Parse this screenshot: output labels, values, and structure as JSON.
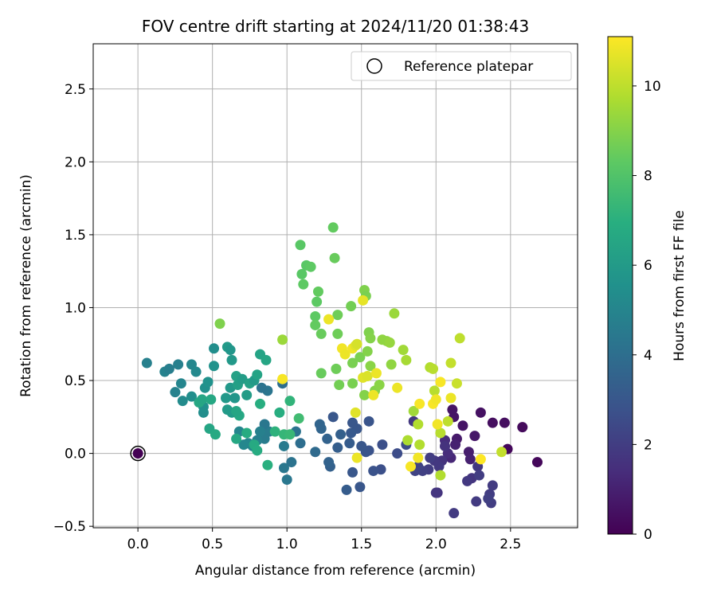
{
  "chart_data": {
    "type": "scatter",
    "title": "FOV centre drift starting at 2024/11/20 01:38:43",
    "xlabel": "Angular distance from reference (arcmin)",
    "ylabel": "Rotation from reference (arcmin)",
    "xlim": [
      -0.3,
      2.95
    ],
    "ylim": [
      -0.51,
      2.81
    ],
    "xticks": [
      0.0,
      0.5,
      1.0,
      1.5,
      2.0,
      2.5
    ],
    "xtick_labels": [
      "0.0",
      "0.5",
      "1.0",
      "1.5",
      "2.0",
      "2.5"
    ],
    "yticks": [
      -0.5,
      0.0,
      0.5,
      1.0,
      1.5,
      2.0,
      2.5
    ],
    "ytick_labels": [
      "−0.5",
      "0.0",
      "0.5",
      "1.0",
      "1.5",
      "2.0",
      "2.5"
    ],
    "grid": true,
    "legend": {
      "position": "top-right",
      "entries": [
        {
          "label": "Reference platepar",
          "marker": "hollow-circle"
        }
      ]
    },
    "colorbar": {
      "label": "Hours from first FF file",
      "colormap": "viridis",
      "range": [
        0,
        11.1
      ],
      "ticks": [
        0,
        2,
        4,
        6,
        8,
        10
      ],
      "tick_labels": [
        "0",
        "2",
        "4",
        "6",
        "8",
        "10"
      ]
    },
    "reference_point": {
      "x": 0.0,
      "y": 0.0,
      "hours": 0
    },
    "points": [
      {
        "x": 2.68,
        "y": -0.06,
        "h": 0.2
      },
      {
        "x": 2.58,
        "y": 0.18,
        "h": 0.3
      },
      {
        "x": 2.48,
        "y": 0.03,
        "h": 0.2
      },
      {
        "x": 2.46,
        "y": 0.21,
        "h": 0.4
      },
      {
        "x": 2.38,
        "y": 0.21,
        "h": 0.4
      },
      {
        "x": 2.3,
        "y": 0.28,
        "h": 0.5
      },
      {
        "x": 2.26,
        "y": 0.12,
        "h": 0.7
      },
      {
        "x": 2.22,
        "y": 0.01,
        "h": 0.9
      },
      {
        "x": 2.23,
        "y": -0.04,
        "h": 1.0
      },
      {
        "x": 2.18,
        "y": 0.19,
        "h": 0.6
      },
      {
        "x": 2.14,
        "y": 0.1,
        "h": 0.8
      },
      {
        "x": 2.12,
        "y": 0.25,
        "h": 0.6
      },
      {
        "x": 2.11,
        "y": 0.3,
        "h": 0.6
      },
      {
        "x": 2.13,
        "y": 0.06,
        "h": 1.0
      },
      {
        "x": 2.1,
        "y": -0.03,
        "h": 1.2
      },
      {
        "x": 2.08,
        "y": 0.0,
        "h": 1.4
      },
      {
        "x": 2.06,
        "y": 0.09,
        "h": 1.4
      },
      {
        "x": 2.06,
        "y": 0.05,
        "h": 1.6
      },
      {
        "x": 2.04,
        "y": -0.05,
        "h": 1.6
      },
      {
        "x": 2.02,
        "y": -0.09,
        "h": 1.8
      },
      {
        "x": 2.01,
        "y": -0.27,
        "h": 1.6
      },
      {
        "x": 2.0,
        "y": -0.27,
        "h": 1.7
      },
      {
        "x": 1.99,
        "y": -0.05,
        "h": 1.8
      },
      {
        "x": 1.96,
        "y": -0.03,
        "h": 2.0
      },
      {
        "x": 1.95,
        "y": -0.11,
        "h": 2.0
      },
      {
        "x": 1.91,
        "y": -0.12,
        "h": 2.1
      },
      {
        "x": 1.88,
        "y": -0.09,
        "h": 2.2
      },
      {
        "x": 1.86,
        "y": -0.12,
        "h": 2.2
      },
      {
        "x": 1.85,
        "y": 0.22,
        "h": 1.8
      },
      {
        "x": 2.24,
        "y": -0.17,
        "h": 1.7
      },
      {
        "x": 2.21,
        "y": -0.19,
        "h": 1.8
      },
      {
        "x": 2.28,
        "y": -0.09,
        "h": 1.8
      },
      {
        "x": 2.29,
        "y": -0.15,
        "h": 2.0
      },
      {
        "x": 2.36,
        "y": -0.28,
        "h": 2.0
      },
      {
        "x": 2.38,
        "y": -0.22,
        "h": 1.9
      },
      {
        "x": 2.37,
        "y": -0.34,
        "h": 2.0
      },
      {
        "x": 2.27,
        "y": -0.33,
        "h": 1.9
      },
      {
        "x": 2.12,
        "y": -0.41,
        "h": 1.9
      },
      {
        "x": 2.35,
        "y": -0.31,
        "h": 2.1
      },
      {
        "x": 1.8,
        "y": 0.06,
        "h": 2.6
      },
      {
        "x": 1.74,
        "y": 0.0,
        "h": 2.6
      },
      {
        "x": 1.64,
        "y": 0.06,
        "h": 2.7
      },
      {
        "x": 1.63,
        "y": -0.11,
        "h": 2.7
      },
      {
        "x": 1.58,
        "y": -0.12,
        "h": 2.8
      },
      {
        "x": 1.55,
        "y": 0.02,
        "h": 2.8
      },
      {
        "x": 1.53,
        "y": 0.01,
        "h": 2.9
      },
      {
        "x": 1.5,
        "y": 0.05,
        "h": 3.0
      },
      {
        "x": 1.55,
        "y": 0.22,
        "h": 2.9
      },
      {
        "x": 1.47,
        "y": 0.17,
        "h": 3.0
      },
      {
        "x": 1.44,
        "y": 0.21,
        "h": 3.0
      },
      {
        "x": 1.43,
        "y": 0.14,
        "h": 3.1
      },
      {
        "x": 1.42,
        "y": 0.07,
        "h": 3.2
      },
      {
        "x": 1.44,
        "y": -0.13,
        "h": 3.0
      },
      {
        "x": 1.49,
        "y": -0.23,
        "h": 3.0
      },
      {
        "x": 1.4,
        "y": -0.25,
        "h": 3.2
      },
      {
        "x": 1.36,
        "y": 0.13,
        "h": 3.4
      },
      {
        "x": 1.34,
        "y": 0.04,
        "h": 3.3
      },
      {
        "x": 1.31,
        "y": 0.25,
        "h": 3.0
      },
      {
        "x": 1.29,
        "y": -0.09,
        "h": 3.4
      },
      {
        "x": 1.28,
        "y": -0.06,
        "h": 3.5
      },
      {
        "x": 1.27,
        "y": 0.1,
        "h": 3.5
      },
      {
        "x": 1.23,
        "y": 0.17,
        "h": 3.6
      },
      {
        "x": 1.22,
        "y": 0.2,
        "h": 3.6
      },
      {
        "x": 1.19,
        "y": 0.01,
        "h": 3.8
      },
      {
        "x": 1.09,
        "y": 0.07,
        "h": 4.0
      },
      {
        "x": 1.06,
        "y": 0.15,
        "h": 4.2
      },
      {
        "x": 1.03,
        "y": -0.06,
        "h": 4.2
      },
      {
        "x": 0.98,
        "y": -0.1,
        "h": 4.4
      },
      {
        "x": 1.0,
        "y": -0.18,
        "h": 4.4
      },
      {
        "x": 0.98,
        "y": 0.05,
        "h": 4.5
      },
      {
        "x": 0.97,
        "y": 0.48,
        "h": 4.0
      },
      {
        "x": 0.87,
        "y": 0.43,
        "h": 4.3
      },
      {
        "x": 0.83,
        "y": 0.45,
        "h": 4.2
      },
      {
        "x": 0.88,
        "y": 0.15,
        "h": 4.6
      },
      {
        "x": 0.85,
        "y": 0.2,
        "h": 4.4
      },
      {
        "x": 0.85,
        "y": 0.1,
        "h": 4.6
      },
      {
        "x": 0.82,
        "y": 0.15,
        "h": 4.8
      },
      {
        "x": 0.8,
        "y": 0.09,
        "h": 4.8
      },
      {
        "x": 0.77,
        "y": 0.05,
        "h": 5.0
      },
      {
        "x": 0.74,
        "y": 0.07,
        "h": 5.0
      },
      {
        "x": 0.71,
        "y": 0.06,
        "h": 5.1
      },
      {
        "x": 0.68,
        "y": 0.15,
        "h": 5.0
      },
      {
        "x": 0.06,
        "y": 0.62,
        "h": 4.8
      },
      {
        "x": 0.18,
        "y": 0.56,
        "h": 4.9
      },
      {
        "x": 0.21,
        "y": 0.58,
        "h": 4.7
      },
      {
        "x": 0.27,
        "y": 0.61,
        "h": 4.8
      },
      {
        "x": 0.25,
        "y": 0.42,
        "h": 4.9
      },
      {
        "x": 0.29,
        "y": 0.48,
        "h": 5.0
      },
      {
        "x": 0.36,
        "y": 0.61,
        "h": 5.1
      },
      {
        "x": 0.39,
        "y": 0.56,
        "h": 5.2
      },
      {
        "x": 0.3,
        "y": 0.36,
        "h": 5.3
      },
      {
        "x": 0.36,
        "y": 0.39,
        "h": 5.4
      },
      {
        "x": 0.45,
        "y": 0.45,
        "h": 5.5
      },
      {
        "x": 0.44,
        "y": 0.28,
        "h": 5.4
      },
      {
        "x": 0.44,
        "y": 0.32,
        "h": 5.5
      },
      {
        "x": 0.47,
        "y": 0.49,
        "h": 5.6
      },
      {
        "x": 0.51,
        "y": 0.6,
        "h": 5.6
      },
      {
        "x": 0.51,
        "y": 0.72,
        "h": 5.4
      },
      {
        "x": 0.6,
        "y": 0.73,
        "h": 6.0
      },
      {
        "x": 0.62,
        "y": 0.71,
        "h": 5.8
      },
      {
        "x": 0.63,
        "y": 0.64,
        "h": 5.9
      },
      {
        "x": 0.62,
        "y": 0.45,
        "h": 5.9
      },
      {
        "x": 0.59,
        "y": 0.38,
        "h": 5.9
      },
      {
        "x": 0.6,
        "y": 0.3,
        "h": 6.0
      },
      {
        "x": 0.63,
        "y": 0.28,
        "h": 6.0
      },
      {
        "x": 0.65,
        "y": 0.38,
        "h": 5.8
      },
      {
        "x": 0.67,
        "y": 0.47,
        "h": 6.2
      },
      {
        "x": 0.66,
        "y": 0.53,
        "h": 6.3
      },
      {
        "x": 0.7,
        "y": 0.51,
        "h": 6.1
      },
      {
        "x": 0.73,
        "y": 0.4,
        "h": 6.1
      },
      {
        "x": 0.75,
        "y": 0.48,
        "h": 6.3
      },
      {
        "x": 0.78,
        "y": 0.5,
        "h": 6.0
      },
      {
        "x": 0.8,
        "y": 0.54,
        "h": 6.4
      },
      {
        "x": 0.82,
        "y": 0.68,
        "h": 6.4
      },
      {
        "x": 0.86,
        "y": 0.64,
        "h": 6.5
      },
      {
        "x": 0.41,
        "y": 0.35,
        "h": 6.6
      },
      {
        "x": 0.43,
        "y": 0.37,
        "h": 6.5
      },
      {
        "x": 0.49,
        "y": 0.37,
        "h": 6.6
      },
      {
        "x": 0.48,
        "y": 0.17,
        "h": 6.5
      },
      {
        "x": 0.52,
        "y": 0.13,
        "h": 6.7
      },
      {
        "x": 0.66,
        "y": 0.1,
        "h": 6.6
      },
      {
        "x": 0.68,
        "y": 0.26,
        "h": 6.6
      },
      {
        "x": 0.66,
        "y": 0.29,
        "h": 6.5
      },
      {
        "x": 0.73,
        "y": 0.14,
        "h": 6.8
      },
      {
        "x": 0.78,
        "y": 0.06,
        "h": 6.7
      },
      {
        "x": 0.8,
        "y": 0.02,
        "h": 6.8
      },
      {
        "x": 0.82,
        "y": 0.34,
        "h": 6.9
      },
      {
        "x": 0.87,
        "y": -0.08,
        "h": 7.0
      },
      {
        "x": 0.92,
        "y": 0.15,
        "h": 7.1
      },
      {
        "x": 0.95,
        "y": 0.28,
        "h": 6.9
      },
      {
        "x": 0.98,
        "y": 0.13,
        "h": 7.3
      },
      {
        "x": 1.02,
        "y": 0.13,
        "h": 7.4
      },
      {
        "x": 1.02,
        "y": 0.36,
        "h": 7.2
      },
      {
        "x": 1.08,
        "y": 0.24,
        "h": 7.6
      },
      {
        "x": 1.09,
        "y": 1.43,
        "h": 8.2
      },
      {
        "x": 1.1,
        "y": 1.23,
        "h": 8.2
      },
      {
        "x": 1.11,
        "y": 1.16,
        "h": 8.3
      },
      {
        "x": 1.13,
        "y": 1.29,
        "h": 8.2
      },
      {
        "x": 1.16,
        "y": 1.28,
        "h": 8.3
      },
      {
        "x": 1.2,
        "y": 1.04,
        "h": 8.3
      },
      {
        "x": 1.21,
        "y": 1.11,
        "h": 8.4
      },
      {
        "x": 1.19,
        "y": 0.94,
        "h": 8.3
      },
      {
        "x": 1.19,
        "y": 0.88,
        "h": 8.4
      },
      {
        "x": 1.23,
        "y": 0.82,
        "h": 8.5
      },
      {
        "x": 1.23,
        "y": 0.55,
        "h": 8.5
      },
      {
        "x": 1.31,
        "y": 1.55,
        "h": 8.4
      },
      {
        "x": 1.32,
        "y": 1.34,
        "h": 8.5
      },
      {
        "x": 1.34,
        "y": 0.95,
        "h": 8.6
      },
      {
        "x": 1.34,
        "y": 0.82,
        "h": 8.6
      },
      {
        "x": 1.33,
        "y": 0.58,
        "h": 8.6
      },
      {
        "x": 1.35,
        "y": 0.47,
        "h": 8.7
      },
      {
        "x": 1.43,
        "y": 1.01,
        "h": 8.7
      },
      {
        "x": 1.44,
        "y": 0.62,
        "h": 8.8
      },
      {
        "x": 1.44,
        "y": 0.48,
        "h": 8.8
      },
      {
        "x": 1.49,
        "y": 0.66,
        "h": 8.8
      },
      {
        "x": 1.52,
        "y": 1.12,
        "h": 8.9
      },
      {
        "x": 1.53,
        "y": 1.08,
        "h": 8.8
      },
      {
        "x": 1.55,
        "y": 0.83,
        "h": 8.9
      },
      {
        "x": 1.56,
        "y": 0.79,
        "h": 9.0
      },
      {
        "x": 1.54,
        "y": 0.7,
        "h": 9.0
      },
      {
        "x": 1.56,
        "y": 0.6,
        "h": 9.1
      },
      {
        "x": 1.52,
        "y": 0.4,
        "h": 9.0
      },
      {
        "x": 1.59,
        "y": 0.43,
        "h": 9.0
      },
      {
        "x": 1.62,
        "y": 0.47,
        "h": 9.1
      },
      {
        "x": 1.64,
        "y": 0.78,
        "h": 9.2
      },
      {
        "x": 1.67,
        "y": 0.77,
        "h": 9.2
      },
      {
        "x": 1.69,
        "y": 0.76,
        "h": 9.3
      },
      {
        "x": 1.7,
        "y": 0.61,
        "h": 9.2
      },
      {
        "x": 1.72,
        "y": 0.96,
        "h": 9.4
      },
      {
        "x": 1.78,
        "y": 0.71,
        "h": 9.5
      },
      {
        "x": 1.8,
        "y": 0.64,
        "h": 9.6
      },
      {
        "x": 1.85,
        "y": 0.29,
        "h": 9.5
      },
      {
        "x": 1.88,
        "y": 0.2,
        "h": 9.8
      },
      {
        "x": 1.96,
        "y": 0.59,
        "h": 9.8
      },
      {
        "x": 1.98,
        "y": 0.58,
        "h": 9.9
      },
      {
        "x": 1.99,
        "y": 0.43,
        "h": 9.9
      },
      {
        "x": 2.03,
        "y": 0.14,
        "h": 9.9
      },
      {
        "x": 2.08,
        "y": 0.22,
        "h": 10.0
      },
      {
        "x": 2.1,
        "y": 0.62,
        "h": 10.1
      },
      {
        "x": 2.14,
        "y": 0.48,
        "h": 10.2
      },
      {
        "x": 2.16,
        "y": 0.79,
        "h": 10.0
      },
      {
        "x": 2.03,
        "y": -0.15,
        "h": 9.8
      },
      {
        "x": 2.44,
        "y": 0.01,
        "h": 10.1
      },
      {
        "x": 1.81,
        "y": 0.09,
        "h": 9.7
      },
      {
        "x": 1.89,
        "y": 0.06,
        "h": 9.8
      },
      {
        "x": 0.97,
        "y": 0.78,
        "h": 9.4
      },
      {
        "x": 0.55,
        "y": 0.89,
        "h": 8.9
      },
      {
        "x": 1.28,
        "y": 0.92,
        "h": 10.8
      },
      {
        "x": 1.37,
        "y": 0.72,
        "h": 10.9
      },
      {
        "x": 1.39,
        "y": 0.68,
        "h": 10.8
      },
      {
        "x": 1.44,
        "y": 0.72,
        "h": 10.9
      },
      {
        "x": 1.46,
        "y": 0.74,
        "h": 10.6
      },
      {
        "x": 1.47,
        "y": 0.75,
        "h": 10.4
      },
      {
        "x": 1.51,
        "y": 1.05,
        "h": 10.7
      },
      {
        "x": 1.51,
        "y": 0.52,
        "h": 10.6
      },
      {
        "x": 1.54,
        "y": 0.53,
        "h": 10.5
      },
      {
        "x": 1.58,
        "y": 0.4,
        "h": 10.8
      },
      {
        "x": 1.6,
        "y": 0.55,
        "h": 10.8
      },
      {
        "x": 1.74,
        "y": 0.45,
        "h": 10.8
      },
      {
        "x": 1.46,
        "y": 0.28,
        "h": 10.6
      },
      {
        "x": 1.47,
        "y": -0.03,
        "h": 10.8
      },
      {
        "x": 1.83,
        "y": -0.09,
        "h": 11.0
      },
      {
        "x": 1.88,
        "y": -0.03,
        "h": 10.9
      },
      {
        "x": 1.89,
        "y": 0.34,
        "h": 11.0
      },
      {
        "x": 1.98,
        "y": 0.34,
        "h": 11.0
      },
      {
        "x": 2.0,
        "y": 0.37,
        "h": 10.9
      },
      {
        "x": 2.01,
        "y": 0.2,
        "h": 10.9
      },
      {
        "x": 2.03,
        "y": 0.49,
        "h": 11.0
      },
      {
        "x": 2.1,
        "y": 0.38,
        "h": 10.8
      },
      {
        "x": 2.3,
        "y": -0.04,
        "h": 11.1
      },
      {
        "x": 0.97,
        "y": 0.51,
        "h": 11.0
      }
    ]
  }
}
